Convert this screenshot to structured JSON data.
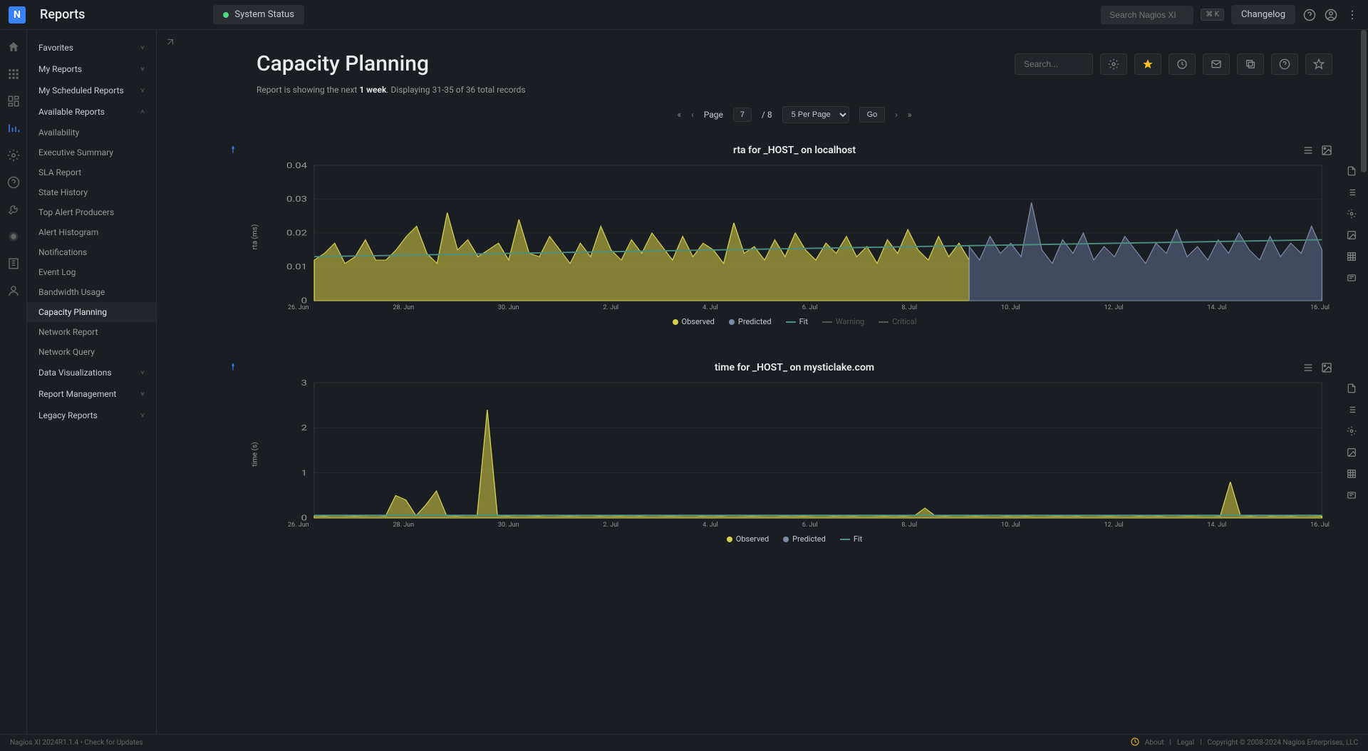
{
  "topbar": {
    "app_title": "Reports",
    "logo_letter": "N",
    "system_status_label": "System Status",
    "status_color": "#4ade80",
    "search_placeholder": "Search Nagios XI",
    "kbd_hint": "⌘ K",
    "changelog_label": "Changelog"
  },
  "sidebar": {
    "groups": [
      {
        "label": "Favorites",
        "expanded": false
      },
      {
        "label": "My Reports",
        "expanded": false
      },
      {
        "label": "My Scheduled Reports",
        "expanded": false
      },
      {
        "label": "Available Reports",
        "expanded": true,
        "items": [
          "Availability",
          "Executive Summary",
          "SLA Report",
          "State History",
          "Top Alert Producers",
          "Alert Histogram",
          "Notifications",
          "Event Log",
          "Bandwidth Usage",
          "Capacity Planning",
          "Network Report",
          "Network Query"
        ],
        "active_index": 9
      },
      {
        "label": "Data Visualizations",
        "expanded": false
      },
      {
        "label": "Report Management",
        "expanded": false
      },
      {
        "label": "Legacy Reports",
        "expanded": false
      }
    ]
  },
  "page": {
    "title": "Capacity Planning",
    "search_placeholder": "Search...",
    "subtitle_prefix": "Report is showing the next ",
    "subtitle_bold": "1 week",
    "subtitle_suffix": ". Displaying 31-35 of 36 total records"
  },
  "pagination": {
    "page_label": "Page",
    "page_value": "7",
    "total_pages": "/ 8",
    "per_page_label": "5 Per Page",
    "go_label": "Go"
  },
  "charts": [
    {
      "title": "rta for _HOST_ on localhost",
      "ylabel": "rta (ms)",
      "ylim": [
        0,
        0.04
      ],
      "yticks": [
        "0",
        "0.01",
        "0.02",
        "0.03",
        "0.04"
      ],
      "xticks": [
        "26. Jun",
        "28. Jun",
        "30. Jun",
        "2. Jul",
        "4. Jul",
        "6. Jul",
        "8. Jul",
        "10. Jul",
        "12. Jul",
        "14. Jul",
        "16. Jul"
      ],
      "observed_split": 0.65,
      "observed_color": "#d4d050",
      "observed_fill": "#b0ab40",
      "predicted_color": "#7a8aa8",
      "predicted_fill": "#5a6a88",
      "fit_color": "#4a9080",
      "background_color": "#1a1d21",
      "grid_color": "#2a2d31",
      "legend": [
        {
          "label": "Observed",
          "color": "#d4d050",
          "type": "dot"
        },
        {
          "label": "Predicted",
          "color": "#7a8aa8",
          "type": "dot"
        },
        {
          "label": "Fit",
          "color": "#4a9080",
          "type": "line"
        },
        {
          "label": "Warning",
          "color": "#555",
          "type": "line",
          "disabled": true
        },
        {
          "label": "Critical",
          "color": "#555",
          "type": "line",
          "disabled": true
        }
      ],
      "observed_data": [
        0.012,
        0.014,
        0.017,
        0.011,
        0.013,
        0.018,
        0.012,
        0.012,
        0.015,
        0.019,
        0.022,
        0.014,
        0.011,
        0.026,
        0.015,
        0.018,
        0.013,
        0.015,
        0.017,
        0.012,
        0.024,
        0.014,
        0.013,
        0.019,
        0.015,
        0.011,
        0.017,
        0.013,
        0.022,
        0.015,
        0.012,
        0.018,
        0.014,
        0.02,
        0.016,
        0.012,
        0.019,
        0.013,
        0.017,
        0.015,
        0.011,
        0.023,
        0.014,
        0.016,
        0.012,
        0.018,
        0.013,
        0.02,
        0.015,
        0.012,
        0.017,
        0.014,
        0.019,
        0.013,
        0.016,
        0.011,
        0.018,
        0.014,
        0.021,
        0.015,
        0.012,
        0.019,
        0.013,
        0.017,
        0.012
      ],
      "predicted_data": [
        0.016,
        0.012,
        0.019,
        0.014,
        0.017,
        0.013,
        0.029,
        0.015,
        0.011,
        0.018,
        0.014,
        0.02,
        0.012,
        0.016,
        0.013,
        0.019,
        0.015,
        0.011,
        0.017,
        0.014,
        0.021,
        0.013,
        0.016,
        0.012,
        0.018,
        0.014,
        0.02,
        0.015,
        0.012,
        0.019,
        0.013,
        0.017,
        0.014,
        0.022,
        0.015
      ],
      "fit_line": [
        0.013,
        0.018
      ]
    },
    {
      "title": "time for _HOST_ on mysticlake.com",
      "ylabel": "time (s)",
      "ylim": [
        0,
        3
      ],
      "yticks": [
        "0",
        "1",
        "2",
        "3"
      ],
      "xticks": [
        "26. Jun",
        "28. Jun",
        "30. Jun",
        "2. Jul",
        "4. Jul",
        "6. Jul",
        "8. Jul",
        "10. Jul",
        "12. Jul",
        "14. Jul",
        "16. Jul"
      ],
      "observed_split": 1.0,
      "observed_color": "#d4d050",
      "observed_fill": "#b0ab40",
      "predicted_color": "#7a8aa8",
      "predicted_fill": "#5a6a88",
      "fit_color": "#4a9080",
      "background_color": "#1a1d21",
      "grid_color": "#2a2d31",
      "legend": [
        {
          "label": "Observed",
          "color": "#d4d050",
          "type": "dot"
        },
        {
          "label": "Predicted",
          "color": "#7a8aa8",
          "type": "dot"
        },
        {
          "label": "Fit",
          "color": "#4a9080",
          "type": "line"
        }
      ],
      "observed_data": [
        0.05,
        0.04,
        0.06,
        0.05,
        0.04,
        0.05,
        0.06,
        0.04,
        0.5,
        0.4,
        0.05,
        0.3,
        0.6,
        0.05,
        0.04,
        0.06,
        0.05,
        2.4,
        0.05,
        0.04,
        0.06,
        0.05,
        0.04,
        0.06,
        0.05,
        0.04,
        0.05,
        0.06,
        0.04,
        0.05,
        0.04,
        0.05,
        0.04,
        0.06,
        0.05,
        0.04,
        0.05,
        0.06,
        0.04,
        0.05,
        0.04,
        0.06,
        0.05,
        0.04,
        0.05,
        0.06,
        0.04,
        0.05,
        0.04,
        0.05,
        0.06,
        0.04,
        0.05,
        0.04,
        0.06,
        0.05,
        0.04,
        0.05,
        0.04,
        0.06,
        0.22,
        0.05,
        0.04,
        0.06,
        0.05,
        0.04,
        0.05,
        0.06,
        0.04,
        0.05,
        0.04,
        0.06,
        0.05,
        0.04,
        0.05,
        0.04,
        0.06,
        0.05,
        0.04,
        0.05,
        0.06,
        0.04,
        0.05,
        0.04,
        0.06,
        0.05,
        0.04,
        0.05,
        0.06,
        0.04,
        0.8,
        0.05,
        0.04,
        0.06,
        0.04,
        0.05,
        0.04,
        0.06,
        0.05,
        0.04
      ],
      "predicted_data": [],
      "fit_line": [
        0.06,
        0.06
      ]
    }
  ],
  "footer": {
    "left": "Nagios XI 2024R1.1.4   •   Check for Updates",
    "about": "About",
    "legal": "Legal",
    "copyright": "Copyright © 2008-2024 Nagios Enterprises, LLC"
  }
}
